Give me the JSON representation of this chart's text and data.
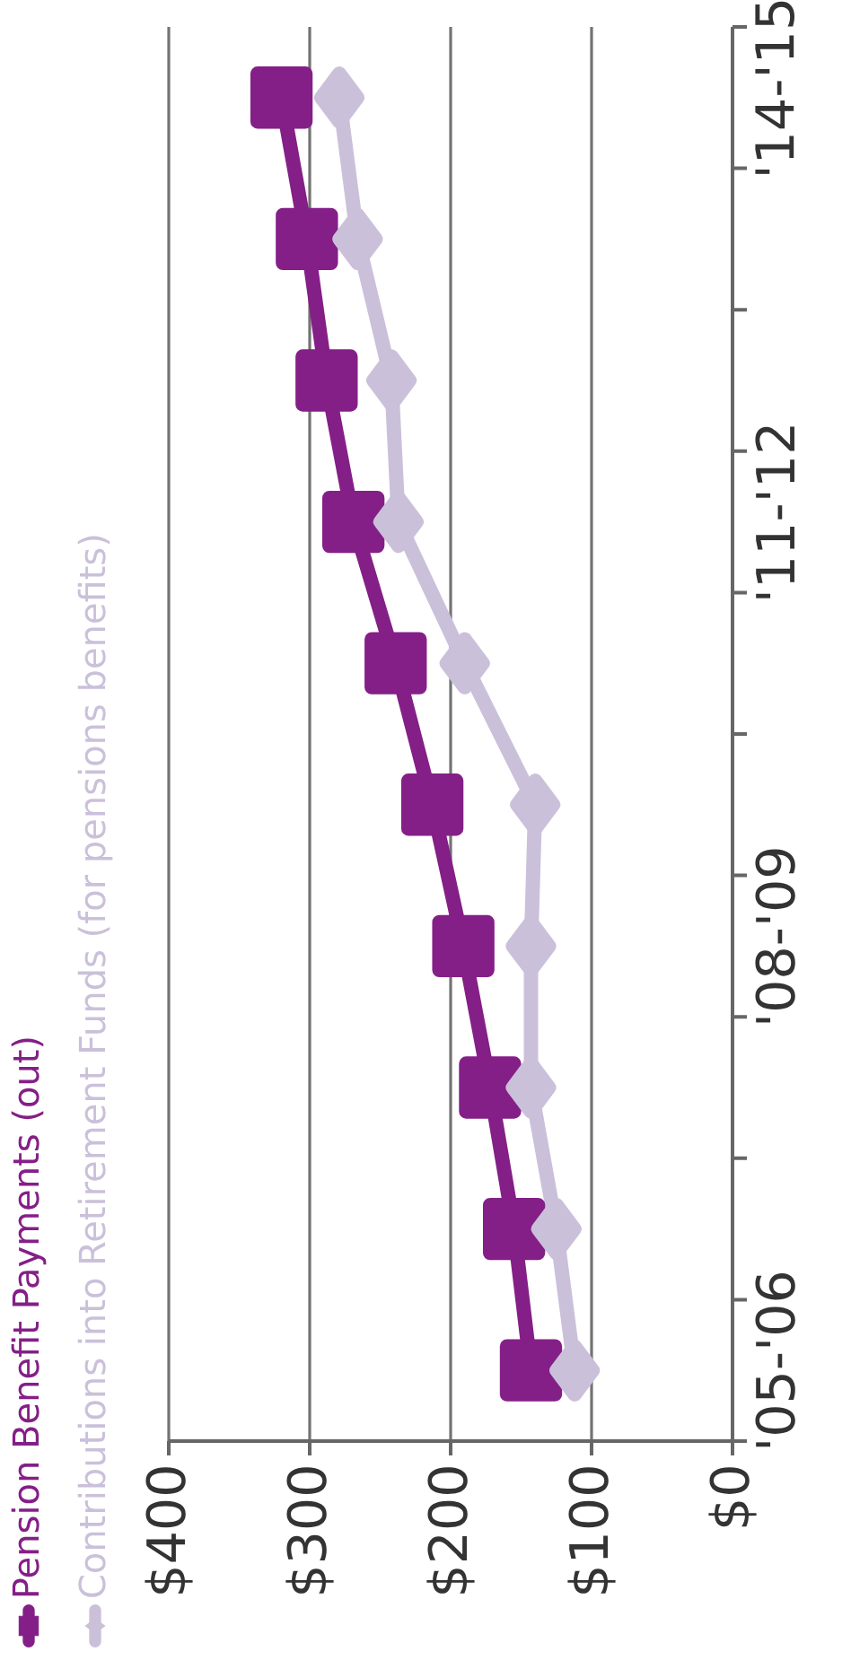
{
  "chart_data": {
    "type": "line",
    "orientation": "horizontal",
    "categories": [
      "'14-'15",
      null,
      null,
      "'11-'12",
      null,
      null,
      "'08-'09",
      null,
      null,
      "'05-'06"
    ],
    "series": [
      {
        "name": "Pension Benefit Payments (out)",
        "color": "#841f87",
        "marker": "square",
        "values": [
          320,
          302,
          288,
          269,
          239,
          213,
          191,
          172,
          155,
          143
        ]
      },
      {
        "name": "Contributions into Retirement Funds (for pensions benefits)",
        "color": "#cbc0da",
        "marker": "diamond",
        "values": [
          279,
          266,
          242,
          237,
          190,
          140,
          143,
          143,
          125,
          112
        ]
      }
    ],
    "xlim": [
      400,
      0
    ],
    "xticks": [
      {
        "value": 400,
        "label": "$400"
      },
      {
        "value": 300,
        "label": "$300"
      },
      {
        "value": 200,
        "label": "$200"
      },
      {
        "value": 100,
        "label": "$100"
      },
      {
        "value": 0,
        "label": "$0"
      }
    ],
    "grid": "x",
    "legend": "left",
    "line_style": "solid"
  }
}
